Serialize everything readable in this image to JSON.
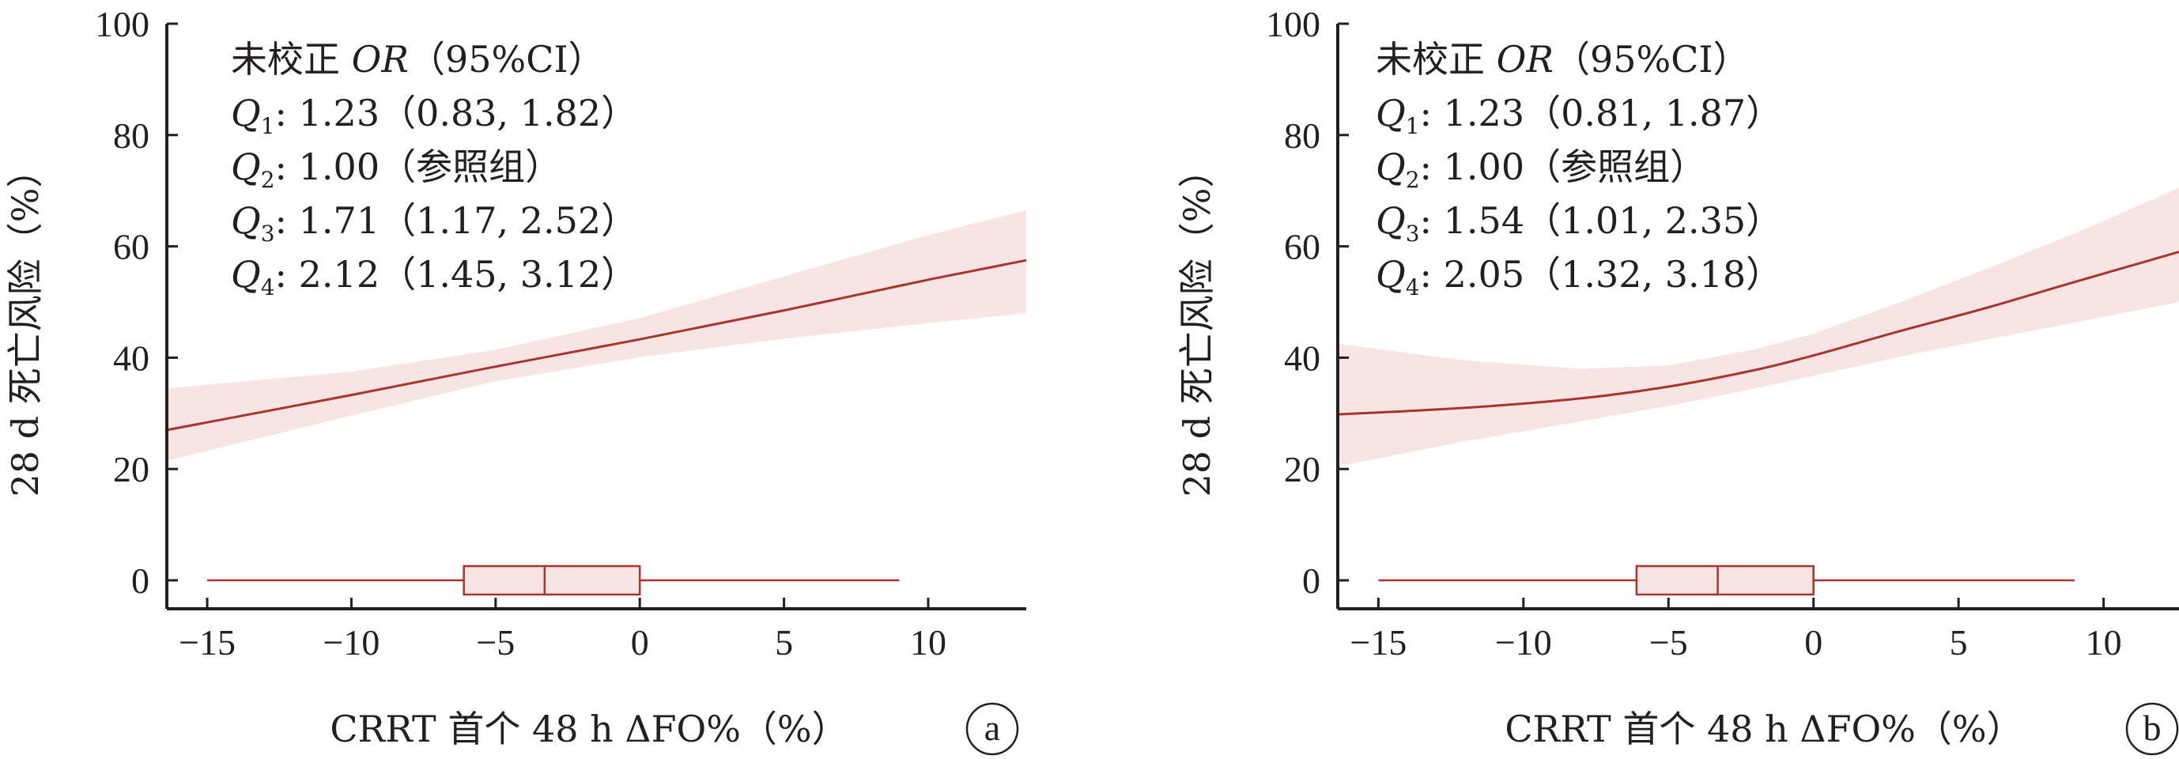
{
  "colors": {
    "curve": "#a8342d",
    "band": "#f7e4e3",
    "box_fill": "#f7e4e3",
    "axis": "#231f20"
  },
  "chart_data": [
    {
      "type": "line",
      "panel_label": "a",
      "xlabel": "CRRT 首个 48 h ΔFO%（%）",
      "ylabel": "28 d 死亡风险（%）",
      "xlim": [
        -16.4,
        13.4
      ],
      "ylim": [
        0,
        100
      ],
      "xticks": [
        -15,
        -10,
        -5,
        0,
        5,
        10
      ],
      "xtick_labels": [
        "−15",
        "−10",
        "−5",
        "0",
        "5",
        "10"
      ],
      "yticks": [
        0,
        20,
        40,
        60,
        80,
        100
      ],
      "ytick_labels": [
        "0",
        "20",
        "40",
        "60",
        "80",
        "100"
      ],
      "annotation": {
        "header": {
          "prefix": "未校正 ",
          "italic": "OR",
          "suffix": "（95%CI）"
        },
        "rows": [
          {
            "sym": "Q",
            "sub": "1",
            "text": ": 1.23（0.83, 1.82）"
          },
          {
            "sym": "Q",
            "sub": "2",
            "text": ": 1.00（参照组）"
          },
          {
            "sym": "Q",
            "sub": "3",
            "text": ": 1.71（1.17, 2.52）"
          },
          {
            "sym": "Q",
            "sub": "4",
            "text": ": 2.12（1.45, 3.12）"
          }
        ]
      },
      "curve": {
        "x": [
          -16.4,
          -10,
          -5,
          0,
          5,
          10,
          13.4
        ],
        "y": [
          27.0,
          33.3,
          38.4,
          43.3,
          48.5,
          54.0,
          57.5
        ]
      },
      "ci_band": {
        "x": [
          -16.4,
          -10,
          -5,
          0,
          5,
          10,
          13.4
        ],
        "lower": [
          21.5,
          29.6,
          35.8,
          40.1,
          43.4,
          46.2,
          48.0
        ],
        "upper": [
          34.5,
          37.5,
          41.4,
          47.1,
          54.6,
          62.0,
          66.5
        ]
      },
      "boxplot": {
        "y": 0,
        "whisker_low": -15,
        "q1": -6.1,
        "median": -3.3,
        "q3": 0,
        "whisker_high": 9
      }
    },
    {
      "type": "line",
      "panel_label": "b",
      "xlabel": "CRRT 首个 48 h ΔFO%（%）",
      "ylabel": "28 d 死亡风险（%）",
      "xlim": [
        -16.4,
        12.6
      ],
      "ylim": [
        0,
        100
      ],
      "xticks": [
        -15,
        -10,
        -5,
        0,
        5,
        10
      ],
      "xtick_labels": [
        "−15",
        "−10",
        "−5",
        "0",
        "5",
        "10"
      ],
      "yticks": [
        0,
        20,
        40,
        60,
        80,
        100
      ],
      "ytick_labels": [
        "0",
        "20",
        "40",
        "60",
        "80",
        "100"
      ],
      "annotation": {
        "header": {
          "prefix": "未校正 ",
          "italic": "OR",
          "suffix": "（95%CI）"
        },
        "rows": [
          {
            "sym": "Q",
            "sub": "1",
            "text": ": 1.23（0.81, 1.87）"
          },
          {
            "sym": "Q",
            "sub": "2",
            "text": ": 1.00（参照组）"
          },
          {
            "sym": "Q",
            "sub": "3",
            "text": ": 1.54（1.01, 2.35）"
          },
          {
            "sym": "Q",
            "sub": "4",
            "text": ": 2.05（1.32, 3.18）"
          }
        ]
      },
      "curve": {
        "x": [
          -16.4,
          -12,
          -8,
          -5,
          -2,
          0,
          3,
          6,
          9,
          12.6
        ],
        "y": [
          29.8,
          31.0,
          32.7,
          34.8,
          37.8,
          40.4,
          44.8,
          49.0,
          53.6,
          59.0
        ]
      },
      "ci_band": {
        "x": [
          -16.4,
          -12,
          -8,
          -5,
          -2,
          0,
          3,
          6,
          9,
          12.6
        ],
        "lower": [
          20.5,
          25.0,
          28.6,
          31.3,
          34.5,
          36.7,
          40.2,
          43.3,
          46.3,
          50.0
        ],
        "upper": [
          42.5,
          39.5,
          38.0,
          38.6,
          41.5,
          44.3,
          50.0,
          56.0,
          62.3,
          70.5
        ]
      },
      "boxplot": {
        "y": 0,
        "whisker_low": -15,
        "q1": -6.1,
        "median": -3.3,
        "q3": 0,
        "whisker_high": 9
      }
    }
  ]
}
